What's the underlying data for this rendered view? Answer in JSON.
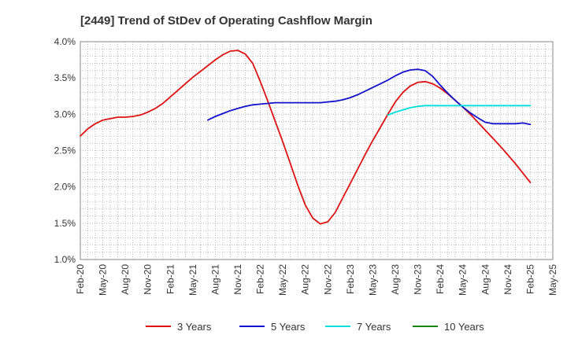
{
  "chart_data": {
    "type": "line",
    "title": "[2449]  Trend of StDev of Operating Cashflow Margin",
    "xlabel": "",
    "ylabel": "",
    "x_ticks": [
      "Feb-20",
      "May-20",
      "Aug-20",
      "Nov-20",
      "Feb-21",
      "May-21",
      "Aug-21",
      "Nov-21",
      "Feb-22",
      "May-22",
      "Aug-22",
      "Nov-22",
      "Feb-23",
      "May-23",
      "Aug-23",
      "Nov-23",
      "Feb-24",
      "May-24",
      "Aug-24",
      "Nov-24",
      "Feb-25",
      "May-25"
    ],
    "y_ticks": [
      "1.0%",
      "1.5%",
      "2.0%",
      "2.5%",
      "3.0%",
      "3.5%",
      "4.0%"
    ],
    "ylim": [
      1.0,
      4.0
    ],
    "grid": true,
    "legend_position": "bottom",
    "series": [
      {
        "name": "3 Years",
        "color": "#dd1111",
        "points": [
          [
            "Feb-20",
            2.7
          ],
          [
            "Mar-20",
            2.8
          ],
          [
            "Apr-20",
            2.87
          ],
          [
            "May-20",
            2.92
          ],
          [
            "Jun-20",
            2.94
          ],
          [
            "Jul-20",
            2.96
          ],
          [
            "Aug-20",
            2.96
          ],
          [
            "Sep-20",
            2.97
          ],
          [
            "Oct-20",
            2.99
          ],
          [
            "Nov-20",
            3.03
          ],
          [
            "Dec-20",
            3.08
          ],
          [
            "Jan-21",
            3.15
          ],
          [
            "Feb-21",
            3.24
          ],
          [
            "Mar-21",
            3.33
          ],
          [
            "Apr-21",
            3.42
          ],
          [
            "May-21",
            3.51
          ],
          [
            "Jun-21",
            3.59
          ],
          [
            "Jul-21",
            3.67
          ],
          [
            "Aug-21",
            3.75
          ],
          [
            "Sep-21",
            3.82
          ],
          [
            "Oct-21",
            3.87
          ],
          [
            "Nov-21",
            3.88
          ],
          [
            "Dec-21",
            3.83
          ],
          [
            "Jan-22",
            3.7
          ],
          [
            "Feb-22",
            3.45
          ],
          [
            "Mar-22",
            3.18
          ],
          [
            "Apr-22",
            2.9
          ],
          [
            "May-22",
            2.62
          ],
          [
            "Jun-22",
            2.32
          ],
          [
            "Jul-22",
            2.02
          ],
          [
            "Aug-22",
            1.75
          ],
          [
            "Sep-22",
            1.57
          ],
          [
            "Oct-22",
            1.49
          ],
          [
            "Nov-22",
            1.52
          ],
          [
            "Dec-22",
            1.65
          ],
          [
            "Jan-23",
            1.85
          ],
          [
            "Feb-23",
            2.05
          ],
          [
            "Mar-23",
            2.25
          ],
          [
            "Apr-23",
            2.45
          ],
          [
            "May-23",
            2.64
          ],
          [
            "Jun-23",
            2.82
          ],
          [
            "Jul-23",
            3.0
          ],
          [
            "Aug-23",
            3.17
          ],
          [
            "Sep-23",
            3.3
          ],
          [
            "Oct-23",
            3.39
          ],
          [
            "Nov-23",
            3.44
          ],
          [
            "Dec-23",
            3.45
          ],
          [
            "Jan-24",
            3.42
          ],
          [
            "Feb-24",
            3.36
          ],
          [
            "Mar-24",
            3.28
          ],
          [
            "Apr-24",
            3.19
          ],
          [
            "May-24",
            3.1
          ],
          [
            "Jun-24",
            3.0
          ],
          [
            "Jul-24",
            2.89
          ],
          [
            "Aug-24",
            2.78
          ],
          [
            "Sep-24",
            2.67
          ],
          [
            "Oct-24",
            2.56
          ],
          [
            "Nov-24",
            2.44
          ],
          [
            "Dec-24",
            2.32
          ],
          [
            "Jan-25",
            2.19
          ],
          [
            "Feb-25",
            2.06
          ]
        ]
      },
      {
        "name": "5 Years",
        "color": "#1111cc",
        "points": [
          [
            "Jul-21",
            2.92
          ],
          [
            "Aug-21",
            2.97
          ],
          [
            "Sep-21",
            3.01
          ],
          [
            "Oct-21",
            3.05
          ],
          [
            "Nov-21",
            3.08
          ],
          [
            "Dec-21",
            3.11
          ],
          [
            "Jan-22",
            3.13
          ],
          [
            "Feb-22",
            3.14
          ],
          [
            "Mar-22",
            3.15
          ],
          [
            "Apr-22",
            3.16
          ],
          [
            "May-22",
            3.16
          ],
          [
            "Jun-22",
            3.16
          ],
          [
            "Jul-22",
            3.16
          ],
          [
            "Aug-22",
            3.16
          ],
          [
            "Sep-22",
            3.16
          ],
          [
            "Oct-22",
            3.16
          ],
          [
            "Nov-22",
            3.17
          ],
          [
            "Dec-22",
            3.18
          ],
          [
            "Jan-23",
            3.2
          ],
          [
            "Feb-23",
            3.23
          ],
          [
            "Mar-23",
            3.27
          ],
          [
            "Apr-23",
            3.32
          ],
          [
            "May-23",
            3.37
          ],
          [
            "Jun-23",
            3.42
          ],
          [
            "Jul-23",
            3.47
          ],
          [
            "Aug-23",
            3.53
          ],
          [
            "Sep-23",
            3.58
          ],
          [
            "Oct-23",
            3.61
          ],
          [
            "Nov-23",
            3.62
          ],
          [
            "Dec-23",
            3.6
          ],
          [
            "Jan-24",
            3.52
          ],
          [
            "Feb-24",
            3.4
          ],
          [
            "Mar-24",
            3.29
          ],
          [
            "Apr-24",
            3.19
          ],
          [
            "May-24",
            3.1
          ],
          [
            "Jun-24",
            3.02
          ],
          [
            "Jul-24",
            2.95
          ],
          [
            "Aug-24",
            2.89
          ],
          [
            "Sep-24",
            2.87
          ],
          [
            "Oct-24",
            2.87
          ],
          [
            "Nov-24",
            2.87
          ],
          [
            "Dec-24",
            2.87
          ],
          [
            "Jan-25",
            2.88
          ],
          [
            "Feb-25",
            2.86
          ]
        ]
      },
      {
        "name": "7 Years",
        "color": "#00dddd",
        "points": [
          [
            "Jul-23",
            2.99
          ],
          [
            "Aug-23",
            3.03
          ],
          [
            "Sep-23",
            3.06
          ],
          [
            "Oct-23",
            3.09
          ],
          [
            "Nov-23",
            3.11
          ],
          [
            "Dec-23",
            3.12
          ],
          [
            "Jan-24",
            3.12
          ],
          [
            "Feb-24",
            3.12
          ],
          [
            "Mar-24",
            3.12
          ],
          [
            "Apr-24",
            3.12
          ],
          [
            "May-24",
            3.12
          ],
          [
            "Jun-24",
            3.12
          ],
          [
            "Jul-24",
            3.12
          ],
          [
            "Aug-24",
            3.12
          ],
          [
            "Sep-24",
            3.12
          ],
          [
            "Oct-24",
            3.12
          ],
          [
            "Nov-24",
            3.12
          ],
          [
            "Dec-24",
            3.12
          ],
          [
            "Jan-25",
            3.12
          ],
          [
            "Feb-25",
            3.12
          ]
        ]
      },
      {
        "name": "10 Years",
        "color": "#118811",
        "points": []
      }
    ]
  }
}
